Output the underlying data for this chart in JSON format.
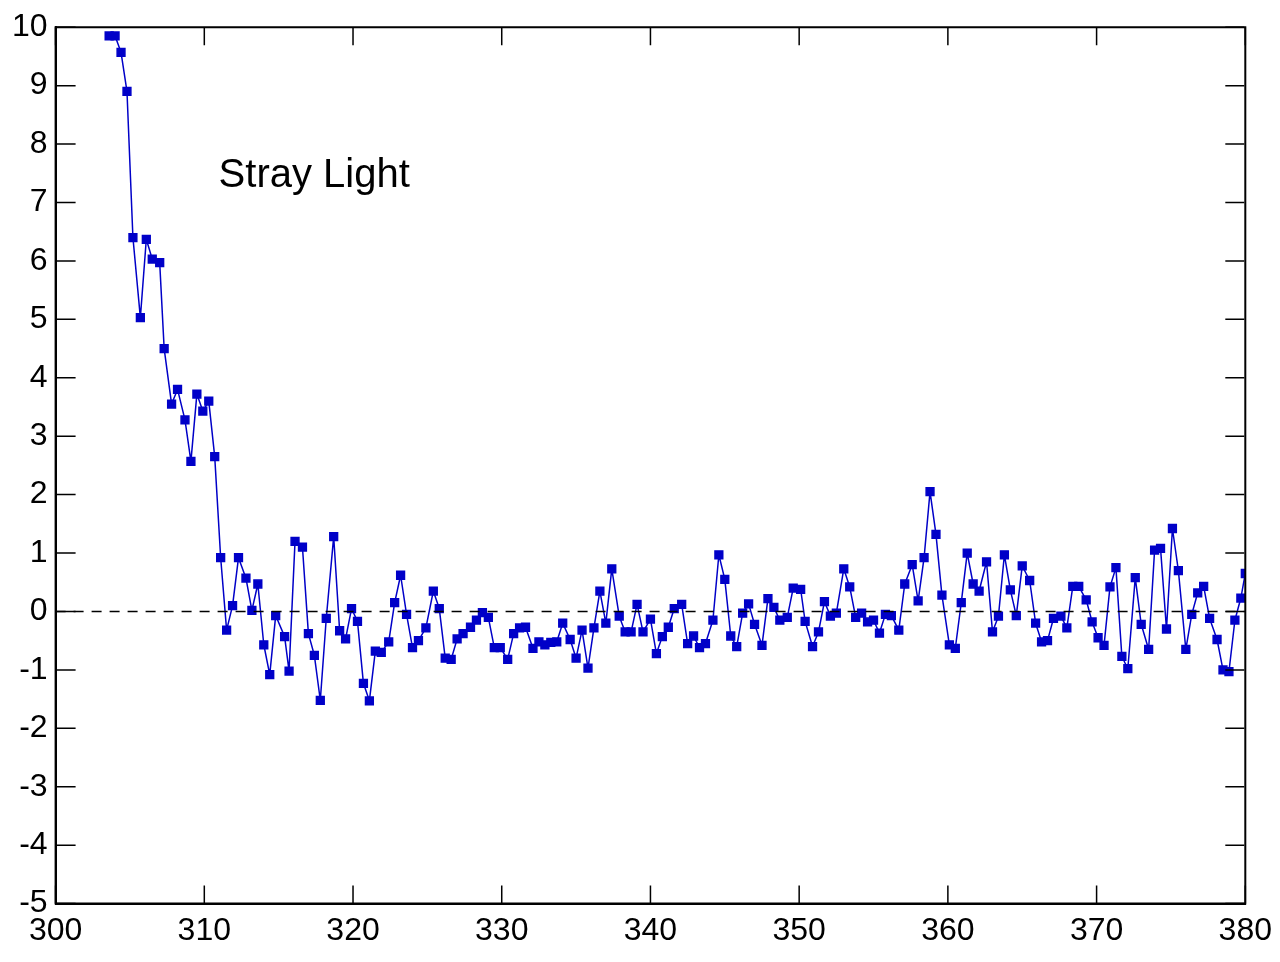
{
  "chart_data": {
    "type": "line",
    "annotations": [
      "Stray Light"
    ],
    "x": [
      303.6,
      304.0,
      304.4,
      304.8,
      305.2,
      305.7,
      306.1,
      306.5,
      307.0,
      307.3,
      307.8,
      308.2,
      308.7,
      309.1,
      309.5,
      309.9,
      310.3,
      310.7,
      311.1,
      311.5,
      311.9,
      312.3,
      312.8,
      313.2,
      313.6,
      314.0,
      314.4,
      314.8,
      315.4,
      315.7,
      316.1,
      316.6,
      317.0,
      317.4,
      317.8,
      318.2,
      318.7,
      319.1,
      319.5,
      319.9,
      320.3,
      320.7,
      321.1,
      321.5,
      321.9,
      322.4,
      322.8,
      323.2,
      323.6,
      324.0,
      324.4,
      324.9,
      325.4,
      325.8,
      326.2,
      326.6,
      327.0,
      327.4,
      327.9,
      328.3,
      328.7,
      329.1,
      329.5,
      329.9,
      330.4,
      330.8,
      331.2,
      331.6,
      332.1,
      332.5,
      332.9,
      333.3,
      333.7,
      334.1,
      334.6,
      335.0,
      335.4,
      335.8,
      336.2,
      336.6,
      337.0,
      337.4,
      337.9,
      338.3,
      338.7,
      339.1,
      339.5,
      340.0,
      340.4,
      340.8,
      341.2,
      341.6,
      342.1,
      342.5,
      342.9,
      343.3,
      343.7,
      344.2,
      344.6,
      345.0,
      345.4,
      345.8,
      346.2,
      346.6,
      347.0,
      347.5,
      347.9,
      348.3,
      348.7,
      349.2,
      349.6,
      350.1,
      350.4,
      350.9,
      351.3,
      351.7,
      352.1,
      352.5,
      353.0,
      353.4,
      353.8,
      354.2,
      354.6,
      355.0,
      355.4,
      355.8,
      356.2,
      356.7,
      357.1,
      357.6,
      358.0,
      358.4,
      358.8,
      359.2,
      359.6,
      360.1,
      360.5,
      360.9,
      361.3,
      361.7,
      362.1,
      362.6,
      363.0,
      363.4,
      363.8,
      364.2,
      364.6,
      365.0,
      365.5,
      365.9,
      366.3,
      366.7,
      367.1,
      367.6,
      368.0,
      368.4,
      368.8,
      369.3,
      369.7,
      370.1,
      370.5,
      370.9,
      371.3,
      371.7,
      372.1,
      372.6,
      373.0,
      373.5,
      373.9,
      374.3,
      374.7,
      375.1,
      375.5,
      376.0,
      376.4,
      376.8,
      377.2,
      377.6,
      378.1,
      378.5,
      378.9,
      379.3,
      379.7,
      380.0
    ],
    "series": [
      {
        "color": "#0000c8",
        "values": [
          9.85,
          9.85,
          9.57,
          8.9,
          6.4,
          5.03,
          6.37,
          6.03,
          5.97,
          4.5,
          3.55,
          3.8,
          3.28,
          2.57,
          3.72,
          3.43,
          3.6,
          2.65,
          0.92,
          -0.32,
          0.1,
          0.92,
          0.57,
          0.02,
          0.47,
          -0.57,
          -1.08,
          -0.07,
          -0.43,
          -1.02,
          1.2,
          1.1,
          -0.38,
          -0.75,
          -1.52,
          -0.12,
          1.28,
          -0.33,
          -0.47,
          0.05,
          -0.17,
          -1.23,
          -1.53,
          -0.68,
          -0.7,
          -0.52,
          0.15,
          0.62,
          -0.05,
          -0.62,
          -0.5,
          -0.28,
          0.35,
          0.05,
          -0.8,
          -0.82,
          -0.47,
          -0.38,
          -0.27,
          -0.15,
          -0.02,
          -0.1,
          -0.62,
          -0.62,
          -0.82,
          -0.38,
          -0.28,
          -0.27,
          -0.63,
          -0.52,
          -0.57,
          -0.53,
          -0.52,
          -0.2,
          -0.48,
          -0.8,
          -0.32,
          -0.97,
          -0.28,
          0.35,
          -0.2,
          0.73,
          -0.08,
          -0.35,
          -0.35,
          0.12,
          -0.35,
          -0.13,
          -0.72,
          -0.43,
          -0.27,
          0.05,
          0.12,
          -0.55,
          -0.42,
          -0.62,
          -0.55,
          -0.15,
          0.97,
          0.55,
          -0.42,
          -0.6,
          -0.03,
          0.13,
          -0.22,
          -0.58,
          0.22,
          0.07,
          -0.15,
          -0.1,
          0.4,
          0.38,
          -0.17,
          -0.6,
          -0.35,
          0.17,
          -0.08,
          -0.03,
          0.73,
          0.42,
          -0.1,
          -0.03,
          -0.18,
          -0.15,
          -0.37,
          -0.05,
          -0.07,
          -0.32,
          0.47,
          0.8,
          0.18,
          0.92,
          2.05,
          1.32,
          0.28,
          -0.57,
          -0.63,
          0.15,
          1.0,
          0.47,
          0.35,
          0.85,
          -0.35,
          -0.08,
          0.97,
          0.37,
          -0.07,
          0.78,
          0.53,
          -0.2,
          -0.52,
          -0.5,
          -0.12,
          -0.08,
          -0.28,
          0.43,
          0.43,
          0.2,
          -0.18,
          -0.45,
          -0.58,
          0.42,
          0.75,
          -0.77,
          -0.98,
          0.58,
          -0.22,
          -0.65,
          1.05,
          1.08,
          -0.3,
          1.42,
          0.7,
          -0.65,
          -0.05,
          0.32,
          0.43,
          -0.12,
          -0.48,
          -1.0,
          -1.03,
          -0.15,
          0.23,
          0.65
        ]
      }
    ],
    "xlim": [
      300,
      380
    ],
    "xticks": [
      300,
      310,
      320,
      330,
      340,
      350,
      360,
      370,
      380
    ],
    "ylim": [
      -5,
      10
    ],
    "yticks": [
      -5,
      -4,
      -3,
      -2,
      -1,
      0,
      1,
      2,
      3,
      4,
      5,
      6,
      7,
      8,
      9,
      10
    ],
    "ref_lines": [
      {
        "axis": "y",
        "value": 0,
        "color": "#000000",
        "line_style": "dashed"
      }
    ],
    "grid": false,
    "legend": false,
    "marker": "square",
    "line_style": "solid"
  }
}
